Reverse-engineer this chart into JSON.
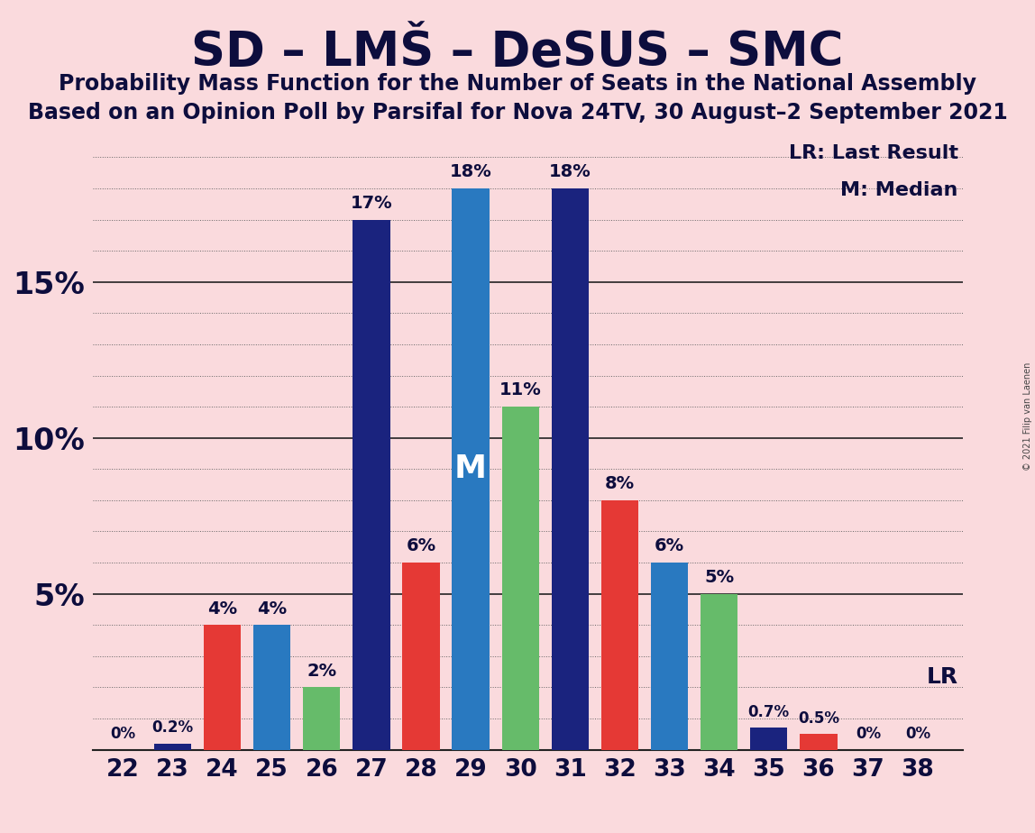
{
  "title": "SD – LMŠ – DeSUS – SMC",
  "subtitle1": "Probability Mass Function for the Number of Seats in the National Assembly",
  "subtitle2": "Based on an Opinion Poll by Parsifal for Nova 24TV, 30 August–2 September 2021",
  "background_color": "#fadadd",
  "seats": [
    22,
    23,
    24,
    25,
    26,
    27,
    28,
    29,
    30,
    31,
    32,
    33,
    34,
    35,
    36,
    37,
    38
  ],
  "values": [
    0.0,
    0.2,
    4.0,
    4.0,
    2.0,
    17.0,
    6.0,
    18.0,
    11.0,
    18.0,
    8.0,
    6.0,
    5.0,
    0.7,
    0.5,
    0.0,
    0.0
  ],
  "bar_colors": [
    "#1a237e",
    "#1a237e",
    "#e53935",
    "#2979c0",
    "#66bb6a",
    "#1a237e",
    "#e53935",
    "#2979c0",
    "#66bb6a",
    "#1a237e",
    "#e53935",
    "#2979c0",
    "#66bb6a",
    "#1a237e",
    "#e53935",
    "#1a237e",
    "#e53935"
  ],
  "label_values": [
    "0%",
    "0.2%",
    "4%",
    "4%",
    "2%",
    "17%",
    "6%",
    "18%",
    "11%",
    "18%",
    "8%",
    "6%",
    "5%",
    "0.7%",
    "0.5%",
    "0%",
    "0%"
  ],
  "ylim": [
    0,
    19.5
  ],
  "yticks": [
    5,
    10,
    15
  ],
  "ytick_labels": [
    "5%",
    "10%",
    "15%"
  ],
  "median_seat": 29,
  "lr_seat": 35,
  "ylabel_fontsize": 24,
  "bar_label_fontsize": 14,
  "title_fontsize": 38,
  "subtitle_fontsize": 17,
  "annotation_fontsize": 17,
  "copyright_text": "© 2021 Filip van Laenen"
}
